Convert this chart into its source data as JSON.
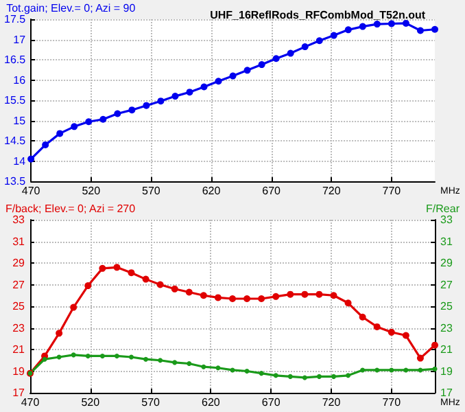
{
  "chart_data": [
    {
      "type": "line",
      "title": "UHF_16ReflRods_RFCombMod_T52n.out",
      "ylabel": "Tot.gain; Elev.= 0; Azi = 90",
      "xlabel": "MHz",
      "x": [
        470,
        482,
        494,
        506,
        518,
        530,
        542,
        554,
        566,
        578,
        590,
        602,
        614,
        626,
        638,
        650,
        662,
        674,
        686,
        698,
        710,
        722,
        734,
        746,
        758,
        770,
        782,
        794,
        806
      ],
      "series": [
        {
          "color": "#0000ee",
          "values": [
            14.05,
            14.4,
            14.68,
            14.85,
            14.97,
            15.03,
            15.17,
            15.26,
            15.37,
            15.48,
            15.6,
            15.7,
            15.83,
            15.97,
            16.1,
            16.24,
            16.38,
            16.53,
            16.66,
            16.82,
            16.97,
            17.1,
            17.24,
            17.32,
            17.38,
            17.39,
            17.4,
            17.22,
            17.25
          ]
        }
      ],
      "xlim": [
        470,
        806
      ],
      "xticks": [
        470,
        520,
        570,
        620,
        670,
        720,
        770
      ],
      "ylim": [
        13.5,
        17.5
      ],
      "yticks": [
        13.5,
        14,
        14.5,
        15,
        15.5,
        16,
        16.5,
        17,
        17.5
      ],
      "grid": true,
      "marker": "circle",
      "line_style": "solid"
    },
    {
      "type": "line",
      "ylabel": "F/back; Elev.= 0; Azi = 270",
      "y2label": "F/Rear",
      "xlabel": "MHz",
      "x": [
        470,
        482,
        494,
        506,
        518,
        530,
        542,
        554,
        566,
        578,
        590,
        602,
        614,
        626,
        638,
        650,
        662,
        674,
        686,
        698,
        710,
        722,
        734,
        746,
        758,
        770,
        782,
        794,
        806
      ],
      "series": [
        {
          "color": "#e00000",
          "values": [
            18.8,
            20.4,
            22.5,
            24.9,
            26.9,
            28.5,
            28.6,
            28.1,
            27.5,
            27.0,
            26.6,
            26.3,
            26.0,
            25.8,
            25.7,
            25.7,
            25.7,
            25.9,
            26.1,
            26.1,
            26.1,
            26.0,
            25.3,
            24.0,
            23.1,
            22.6,
            22.3,
            20.2,
            21.4
          ]
        },
        {
          "color": "#1a9a1a",
          "axis": "y2",
          "values": [
            18.8,
            20.1,
            20.3,
            20.5,
            20.4,
            20.4,
            20.4,
            20.3,
            20.1,
            20.0,
            19.8,
            19.7,
            19.4,
            19.3,
            19.1,
            19.0,
            18.8,
            18.6,
            18.5,
            18.4,
            18.5,
            18.5,
            18.6,
            19.1,
            19.1,
            19.1,
            19.1,
            19.1,
            19.2
          ]
        }
      ],
      "xlim": [
        470,
        806
      ],
      "xticks": [
        470,
        520,
        570,
        620,
        670,
        720,
        770
      ],
      "ylim": [
        17,
        33
      ],
      "yticks": [
        17,
        19,
        21,
        23,
        25,
        27,
        29,
        31,
        33
      ],
      "y2lim": [
        17,
        33
      ],
      "y2ticks": [
        17,
        19,
        21,
        23,
        25,
        27,
        29,
        31,
        33
      ],
      "grid": true,
      "marker": "circle",
      "line_style": "solid"
    }
  ]
}
